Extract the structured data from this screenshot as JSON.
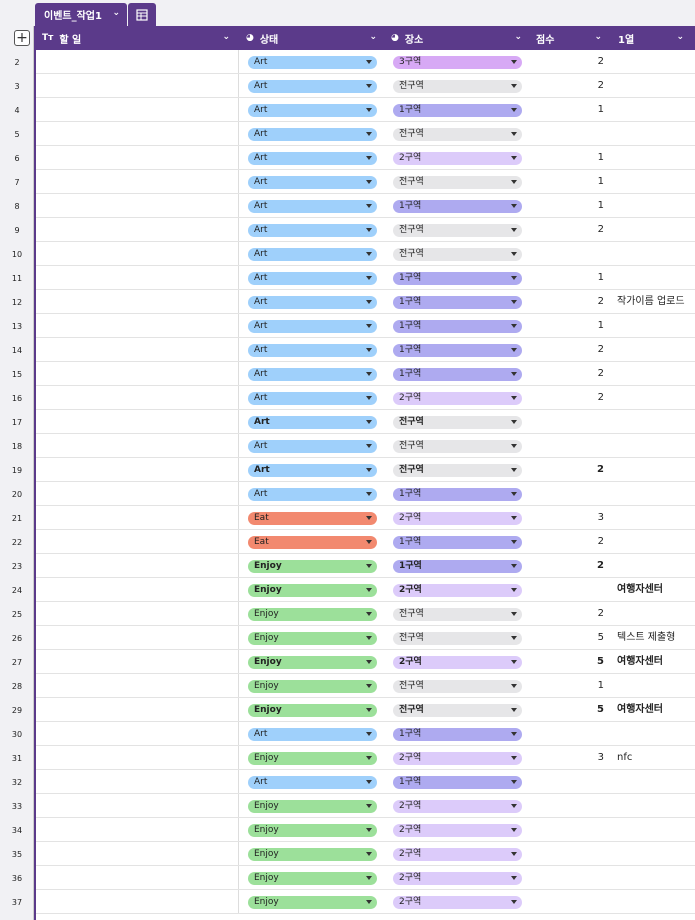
{
  "tab": {
    "name": "이벤트_작업1"
  },
  "columns": {
    "add": "+",
    "todo": {
      "icon": "Tт",
      "label": "할 일"
    },
    "status": {
      "label": "상태"
    },
    "place": {
      "label": "장소"
    },
    "score": {
      "label": "점수"
    },
    "col1": {
      "label": "1열"
    }
  },
  "colors": {
    "header_bg": "#5b3a8a",
    "Art": "#9fd0fb",
    "Eat": "#f2896f",
    "Enjoy": "#9ce09a",
    "3구역": "#d7a9f5",
    "전구역": "#e6e6e8",
    "1구역": "#aeaaf0",
    "2구역": "#dccbfa"
  },
  "rows": [
    {
      "n": "2",
      "status": "Art",
      "place": "3구역",
      "score": "2",
      "note": "",
      "bold": false
    },
    {
      "n": "3",
      "status": "Art",
      "place": "전구역",
      "score": "2",
      "note": "",
      "bold": false
    },
    {
      "n": "4",
      "status": "Art",
      "place": "1구역",
      "score": "1",
      "note": "",
      "bold": false
    },
    {
      "n": "5",
      "status": "Art",
      "place": "전구역",
      "score": "",
      "note": "",
      "bold": false
    },
    {
      "n": "6",
      "status": "Art",
      "place": "2구역",
      "score": "1",
      "note": "",
      "bold": false
    },
    {
      "n": "7",
      "status": "Art",
      "place": "전구역",
      "score": "1",
      "note": "",
      "bold": false
    },
    {
      "n": "8",
      "status": "Art",
      "place": "1구역",
      "score": "1",
      "note": "",
      "bold": false
    },
    {
      "n": "9",
      "status": "Art",
      "place": "전구역",
      "score": "2",
      "note": "",
      "bold": false
    },
    {
      "n": "10",
      "status": "Art",
      "place": "전구역",
      "score": "",
      "note": "",
      "bold": false
    },
    {
      "n": "11",
      "status": "Art",
      "place": "1구역",
      "score": "1",
      "note": "",
      "bold": false
    },
    {
      "n": "12",
      "status": "Art",
      "place": "1구역",
      "score": "2",
      "note": "작가이름 업로드",
      "bold": false
    },
    {
      "n": "13",
      "status": "Art",
      "place": "1구역",
      "score": "1",
      "note": "",
      "bold": false
    },
    {
      "n": "14",
      "status": "Art",
      "place": "1구역",
      "score": "2",
      "note": "",
      "bold": false
    },
    {
      "n": "15",
      "status": "Art",
      "place": "1구역",
      "score": "2",
      "note": "",
      "bold": false
    },
    {
      "n": "16",
      "status": "Art",
      "place": "2구역",
      "score": "2",
      "note": "",
      "bold": false
    },
    {
      "n": "17",
      "status": "Art",
      "place": "전구역",
      "score": "",
      "note": "",
      "bold": true
    },
    {
      "n": "18",
      "status": "Art",
      "place": "전구역",
      "score": "",
      "note": "",
      "bold": false
    },
    {
      "n": "19",
      "status": "Art",
      "place": "전구역",
      "score": "2",
      "note": "",
      "bold": true
    },
    {
      "n": "20",
      "status": "Art",
      "place": "1구역",
      "score": "",
      "note": "",
      "bold": false
    },
    {
      "n": "21",
      "status": "Eat",
      "place": "2구역",
      "score": "3",
      "note": "",
      "bold": false
    },
    {
      "n": "22",
      "status": "Eat",
      "place": "1구역",
      "score": "2",
      "note": "",
      "bold": false
    },
    {
      "n": "23",
      "status": "Enjoy",
      "place": "1구역",
      "score": "2",
      "note": "",
      "bold": true
    },
    {
      "n": "24",
      "status": "Enjoy",
      "place": "2구역",
      "score": "",
      "note": "여행자센터",
      "bold": true
    },
    {
      "n": "25",
      "status": "Enjoy",
      "place": "전구역",
      "score": "2",
      "note": "",
      "bold": false
    },
    {
      "n": "26",
      "status": "Enjoy",
      "place": "전구역",
      "score": "5",
      "note": "텍스트 제출형",
      "bold": false
    },
    {
      "n": "27",
      "status": "Enjoy",
      "place": "2구역",
      "score": "5",
      "note": "여행자센터",
      "bold": true
    },
    {
      "n": "28",
      "status": "Enjoy",
      "place": "전구역",
      "score": "1",
      "note": "",
      "bold": false
    },
    {
      "n": "29",
      "status": "Enjoy",
      "place": "전구역",
      "score": "5",
      "note": "여행자센터",
      "bold": true
    },
    {
      "n": "30",
      "status": "Art",
      "place": "1구역",
      "score": "",
      "note": "",
      "bold": false
    },
    {
      "n": "31",
      "status": "Enjoy",
      "place": "2구역",
      "score": "3",
      "note": "nfc",
      "bold": false
    },
    {
      "n": "32",
      "status": "Art",
      "place": "1구역",
      "score": "",
      "note": "",
      "bold": false
    },
    {
      "n": "33",
      "status": "Enjoy",
      "place": "2구역",
      "score": "",
      "note": "",
      "bold": false
    },
    {
      "n": "34",
      "status": "Enjoy",
      "place": "2구역",
      "score": "",
      "note": "",
      "bold": false
    },
    {
      "n": "35",
      "status": "Enjoy",
      "place": "2구역",
      "score": "",
      "note": "",
      "bold": false
    },
    {
      "n": "36",
      "status": "Enjoy",
      "place": "2구역",
      "score": "",
      "note": "",
      "bold": false
    },
    {
      "n": "37",
      "status": "Enjoy",
      "place": "2구역",
      "score": "",
      "note": "",
      "bold": false
    }
  ]
}
